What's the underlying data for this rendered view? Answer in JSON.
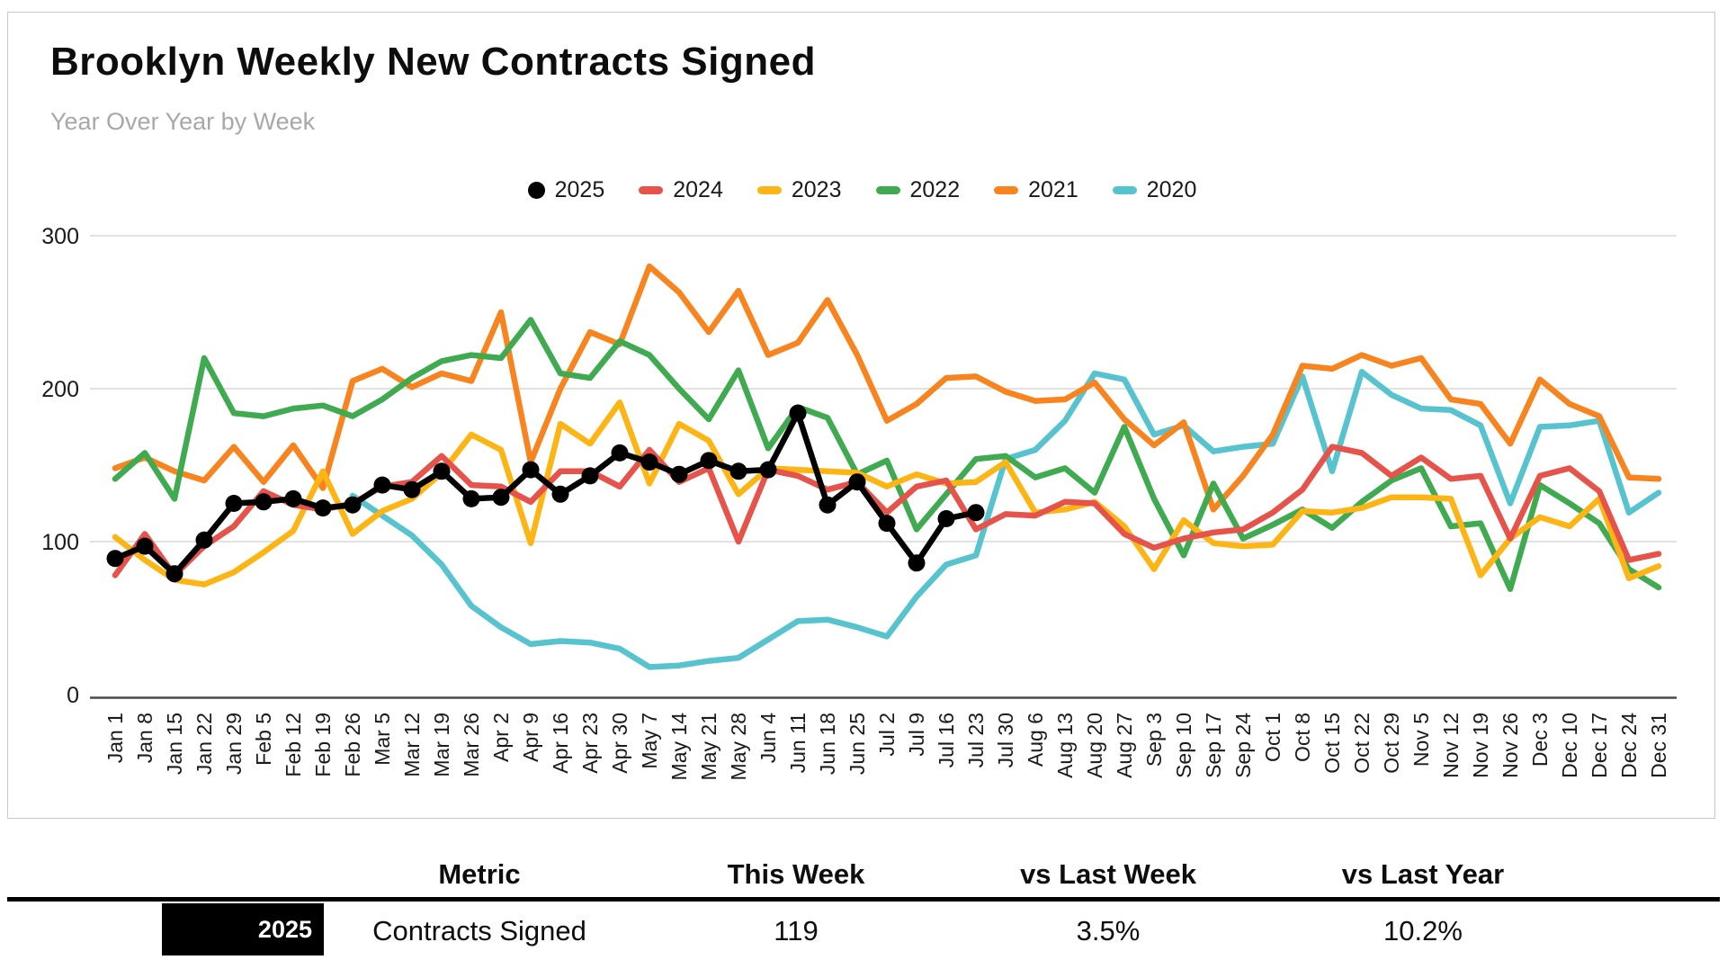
{
  "header": {
    "title": "Brooklyn Weekly New Contracts Signed",
    "subtitle": "Year Over Year by Week"
  },
  "colors": {
    "y2025": "#000000",
    "y2024": "#e5534b",
    "y2023": "#fcb514",
    "y2022": "#3faa50",
    "y2021": "#f8841f",
    "y2020": "#57c3ce",
    "gridline": "#d8d8d8",
    "axis_line": "#4a4a4a"
  },
  "chart_data": {
    "type": "line",
    "title": "Brooklyn Weekly New Contracts Signed",
    "xlabel": "",
    "ylabel": "",
    "ylim": [
      0,
      305
    ],
    "y_ticks": [
      0,
      100,
      200,
      300
    ],
    "grid": true,
    "legend_position": "top",
    "x_labels": [
      "Jan 1",
      "Jan 8",
      "Jan 15",
      "Jan 22",
      "Jan 29",
      "Feb 5",
      "Feb 12",
      "Feb 19",
      "Feb 26",
      "Mar 5",
      "Mar 12",
      "Mar 19",
      "Mar 26",
      "Apr 2",
      "Apr 9",
      "Apr 16",
      "Apr 23",
      "Apr 30",
      "May 7",
      "May 14",
      "May 21",
      "May 28",
      "Jun 4",
      "Jun 11",
      "Jun 18",
      "Jun 25",
      "Jul 2",
      "Jul 9",
      "Jul 16",
      "Jul 23",
      "Jul 30",
      "Aug 6",
      "Aug 13",
      "Aug 20",
      "Aug 27",
      "Sep 3",
      "Sep 10",
      "Sep 17",
      "Sep 24",
      "Oct 1",
      "Oct 8",
      "Oct 15",
      "Oct 22",
      "Oct 29",
      "Nov 5",
      "Nov 12",
      "Nov 19",
      "Nov 26",
      "Dec 3",
      "Dec 10",
      "Dec 17",
      "Dec 24",
      "Dec 31"
    ],
    "series": [
      {
        "name": "2020",
        "color": "#57c3ce",
        "marker": "none",
        "values": [
          null,
          null,
          null,
          null,
          null,
          null,
          null,
          null,
          130,
          117,
          104,
          85,
          58,
          44,
          33,
          35,
          34,
          30,
          18,
          19,
          22,
          24,
          36,
          48,
          49,
          44,
          38,
          64,
          85,
          91,
          154,
          160,
          179,
          210,
          206,
          170,
          176,
          159,
          162,
          164,
          208,
          146,
          211,
          196,
          187,
          186,
          176,
          125,
          175,
          176,
          179,
          119,
          132
        ]
      },
      {
        "name": "2021",
        "color": "#f8841f",
        "marker": "none",
        "values": [
          148,
          155,
          146,
          140,
          162,
          139,
          163,
          135,
          205,
          213,
          201,
          210,
          205,
          250,
          152,
          200,
          237,
          229,
          280,
          263,
          237,
          264,
          222,
          230,
          258,
          222,
          179,
          190,
          207,
          208,
          198,
          192,
          193,
          204,
          180,
          163,
          178,
          121,
          143,
          170,
          215,
          213,
          222,
          215,
          220,
          193,
          190,
          164,
          206,
          190,
          182,
          142,
          141
        ]
      },
      {
        "name": "2022",
        "color": "#3faa50",
        "marker": "none",
        "values": [
          141,
          158,
          128,
          220,
          184,
          182,
          187,
          189,
          182,
          193,
          207,
          218,
          222,
          220,
          245,
          210,
          207,
          231,
          222,
          200,
          180,
          212,
          161,
          188,
          181,
          144,
          153,
          108,
          131,
          154,
          156,
          142,
          148,
          132,
          175,
          128,
          91,
          138,
          102,
          111,
          121,
          109,
          126,
          140,
          148,
          110,
          112,
          69,
          137,
          125,
          112,
          82,
          70
        ]
      },
      {
        "name": "2023",
        "color": "#fcb514",
        "marker": "none",
        "values": [
          103,
          88,
          75,
          72,
          80,
          93,
          107,
          146,
          105,
          120,
          128,
          145,
          170,
          160,
          99,
          177,
          164,
          191,
          138,
          177,
          166,
          131,
          148,
          147,
          146,
          145,
          136,
          144,
          138,
          139,
          152,
          119,
          121,
          126,
          110,
          82,
          114,
          99,
          97,
          98,
          120,
          119,
          122,
          129,
          129,
          128,
          78,
          102,
          116,
          110,
          128,
          76,
          84
        ]
      },
      {
        "name": "2024",
        "color": "#e5534b",
        "marker": "none",
        "values": [
          78,
          105,
          78,
          97,
          110,
          133,
          124,
          121,
          125,
          136,
          139,
          156,
          137,
          136,
          126,
          146,
          146,
          136,
          160,
          139,
          148,
          100,
          147,
          143,
          134,
          139,
          119,
          136,
          140,
          108,
          118,
          117,
          126,
          125,
          105,
          96,
          102,
          106,
          108,
          119,
          134,
          162,
          158,
          143,
          155,
          141,
          143,
          102,
          143,
          148,
          133,
          88,
          92
        ]
      },
      {
        "name": "2025",
        "color": "#000000",
        "marker": "circle",
        "values": [
          89,
          97,
          79,
          101,
          125,
          126,
          128,
          122,
          124,
          137,
          134,
          146,
          128,
          129,
          147,
          131,
          143,
          158,
          152,
          144,
          153,
          146,
          147,
          184,
          124,
          139,
          112,
          86,
          115,
          119,
          null,
          null,
          null,
          null,
          null,
          null,
          null,
          null,
          null,
          null,
          null,
          null,
          null,
          null,
          null,
          null,
          null,
          null,
          null,
          null,
          null,
          null,
          null
        ]
      }
    ],
    "legend_order": [
      "2025",
      "2024",
      "2023",
      "2022",
      "2021",
      "2020"
    ]
  },
  "table": {
    "headers": [
      "Metric",
      "This Week",
      "vs Last Week",
      "vs Last Year"
    ],
    "row": {
      "year": "2025",
      "metric": "Contracts Signed",
      "this_week": "119",
      "vs_last_week": "3.5%",
      "vs_last_year": "10.2%"
    }
  }
}
